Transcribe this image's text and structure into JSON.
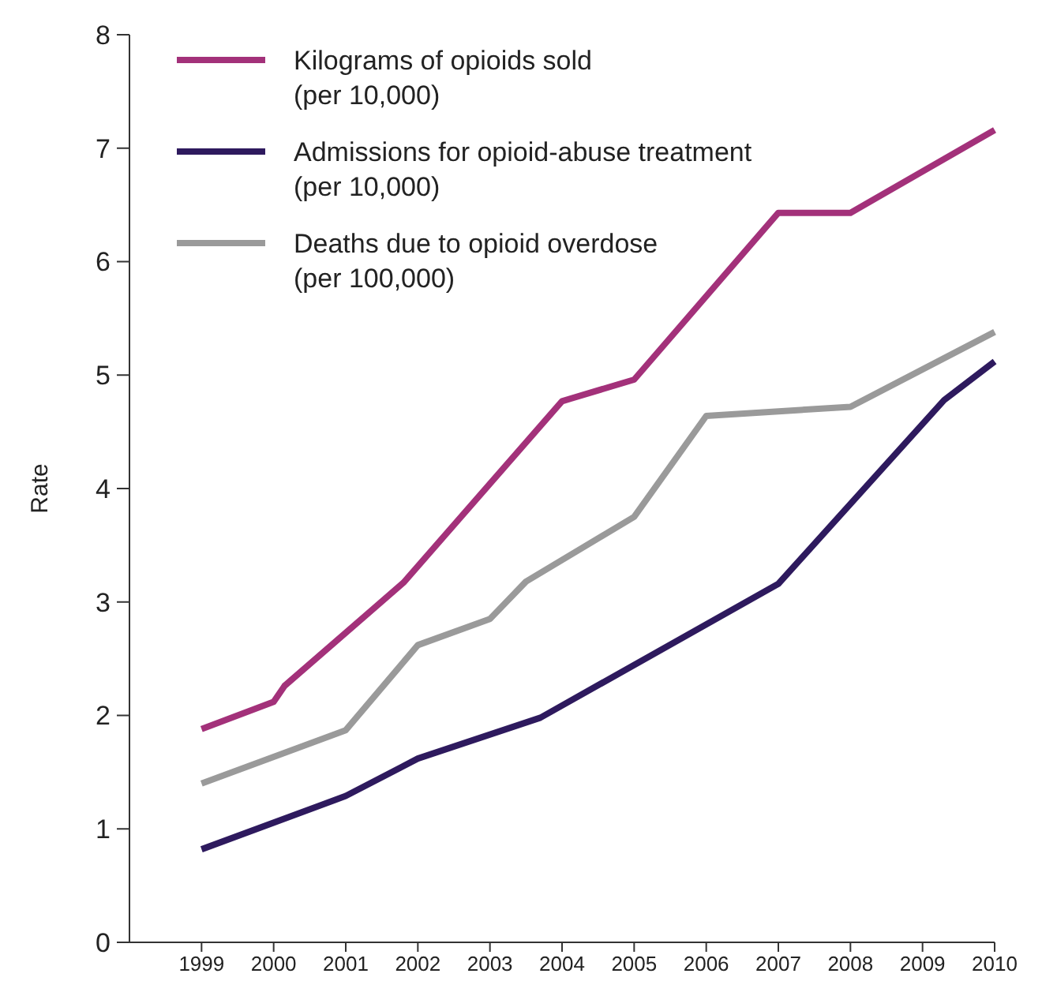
{
  "chart_data": {
    "type": "line",
    "ylabel": "Rate",
    "xlim": [
      1998,
      2010
    ],
    "ylim": [
      0,
      8
    ],
    "xticks": [
      1999,
      2000,
      2001,
      2002,
      2003,
      2004,
      2005,
      2006,
      2007,
      2008,
      2009,
      2010
    ],
    "yticks": [
      0,
      1,
      2,
      3,
      4,
      5,
      6,
      7,
      8
    ],
    "grid": false,
    "legend": "top left",
    "marker": "none",
    "line_style": "solid",
    "series": [
      {
        "name": "Kilograms of opioids sold\n(per 10,000)",
        "color": "#a3317a",
        "x": [
          1999,
          2000,
          2000.15,
          2001.8,
          2004,
          2005,
          2007,
          2008,
          2010
        ],
        "values": [
          1.88,
          2.12,
          2.26,
          3.17,
          4.77,
          4.96,
          6.43,
          6.43,
          7.16
        ]
      },
      {
        "name": "Admissions for opioid-abuse treatment\n(per 10,000)",
        "color": "#2e1a5e",
        "x": [
          1999,
          2001,
          2002,
          2003.7,
          2007,
          2009.3,
          2010
        ],
        "values": [
          0.82,
          1.29,
          1.62,
          1.98,
          3.16,
          4.78,
          5.12
        ]
      },
      {
        "name": "Deaths due to opioid overdose\n(per 100,000)",
        "color": "#9a9a9a",
        "x": [
          1999,
          2001,
          2002,
          2003,
          2003.5,
          2005,
          2006,
          2008,
          2010
        ],
        "values": [
          1.4,
          1.87,
          2.62,
          2.85,
          3.18,
          3.75,
          4.64,
          4.72,
          5.38
        ]
      }
    ]
  }
}
